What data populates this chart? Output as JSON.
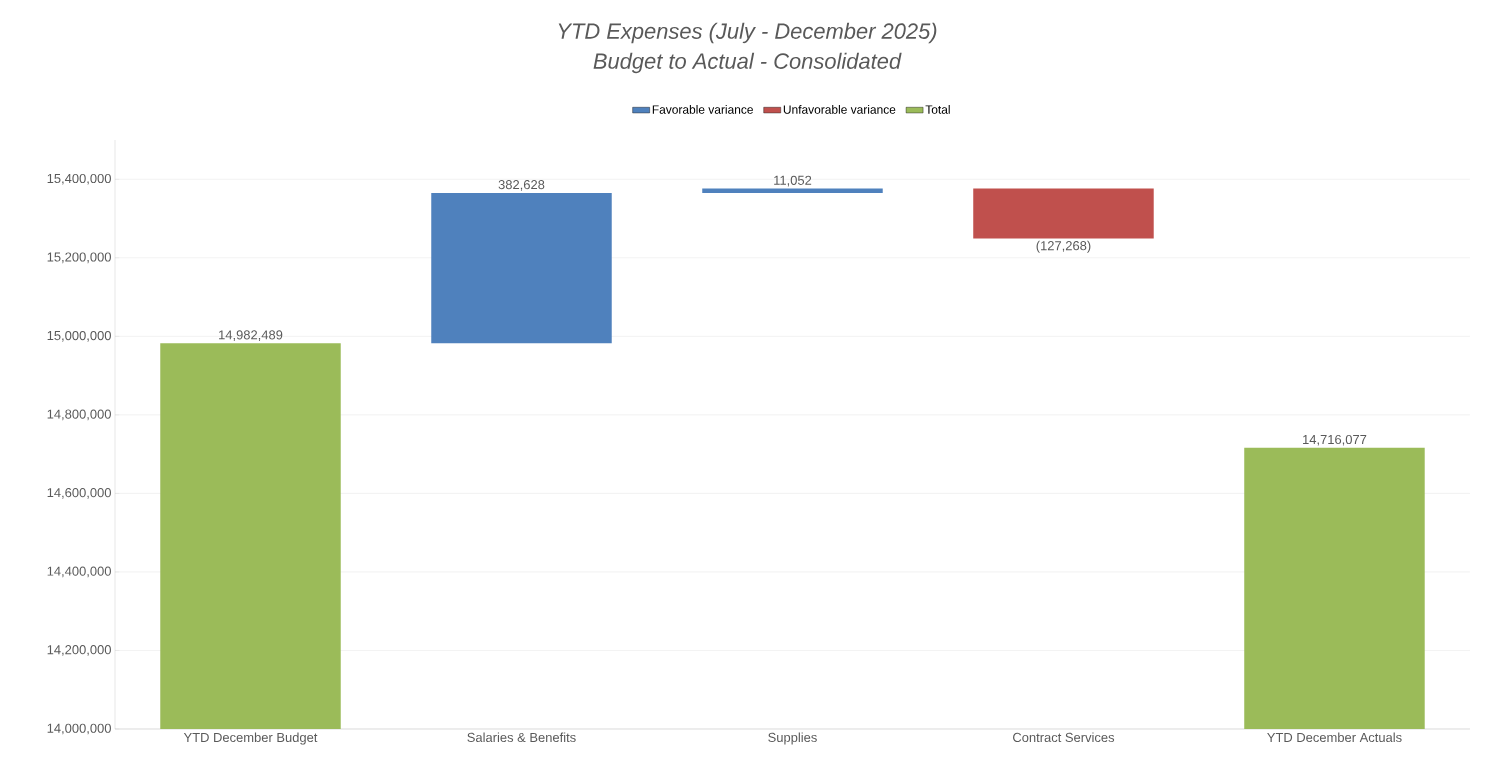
{
  "chart_data": {
    "type": "bar",
    "title": "YTD Expenses (July - December 2025)",
    "subtitle": "Budget to Actual - Consolidated",
    "categories": [
      "YTD December Budget",
      "Salaries & Benefits",
      "Supplies",
      "Contract Services",
      "YTD December Actuals"
    ],
    "series": [
      {
        "name": "Favorable variance",
        "color": "#4f81bd",
        "values": [
          null,
          382628,
          11052,
          null,
          null
        ],
        "base": [
          null,
          14982489,
          15365117,
          null,
          null
        ],
        "value_labels": [
          null,
          "382,628",
          "11,052",
          null,
          null
        ]
      },
      {
        "name": "Unfavorable variance",
        "color": "#c0504d",
        "values": [
          null,
          null,
          null,
          -127268,
          null
        ],
        "base": [
          null,
          null,
          null,
          15376169,
          null
        ],
        "value_labels": [
          null,
          null,
          null,
          "(127,268)",
          null
        ]
      },
      {
        "name": "Total",
        "color": "#9bbb59",
        "values": [
          14982489,
          null,
          null,
          null,
          14716077
        ],
        "value_labels": [
          "14,982,489",
          null,
          null,
          null,
          "14,716,077"
        ]
      }
    ],
    "ylim": [
      14000000,
      15500000
    ],
    "yticks": [
      {
        "value": 14000000,
        "label": "14,000,000"
      },
      {
        "value": 14200000,
        "label": "14,200,000"
      },
      {
        "value": 14400000,
        "label": "14,400,000"
      },
      {
        "value": 14600000,
        "label": "14,600,000"
      },
      {
        "value": 14800000,
        "label": "14,800,000"
      },
      {
        "value": 15000000,
        "label": "15,000,000"
      },
      {
        "value": 15200000,
        "label": "15,200,000"
      },
      {
        "value": 15400000,
        "label": "15,400,000"
      }
    ],
    "grid": "y",
    "legend": "top"
  }
}
